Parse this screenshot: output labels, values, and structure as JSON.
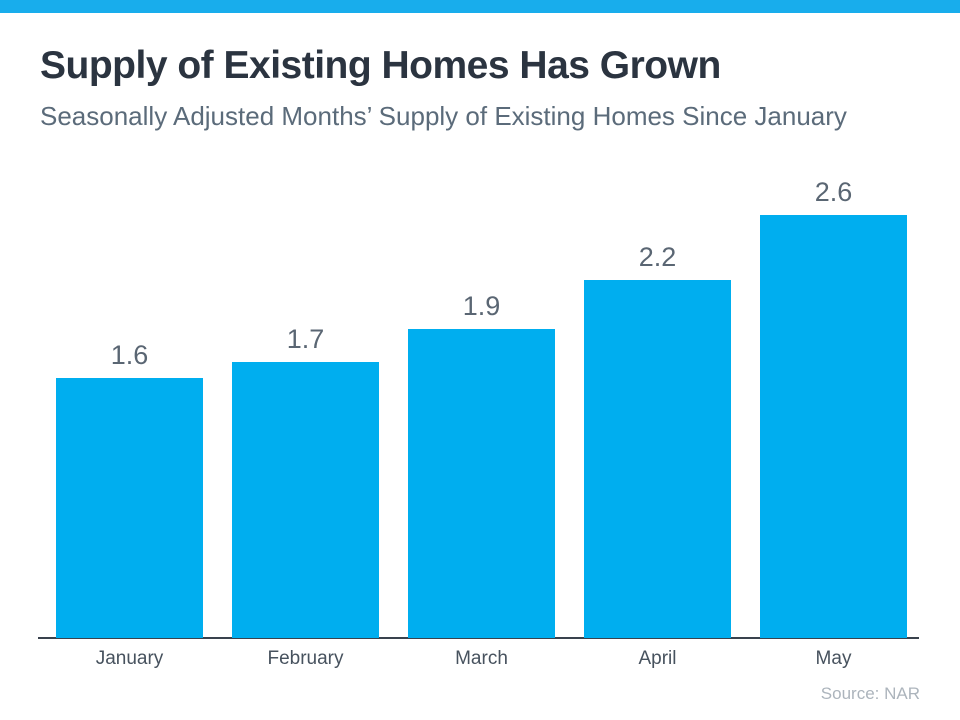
{
  "page": {
    "accent_strip_color": "#18ADEC"
  },
  "chart_data": {
    "type": "bar",
    "title": "Supply of Existing Homes Has Grown",
    "subtitle": "Seasonally Adjusted Months’ Supply of Existing Homes Since January",
    "categories": [
      "January",
      "February",
      "March",
      "April",
      "May"
    ],
    "values": [
      1.6,
      1.7,
      1.9,
      2.2,
      2.6
    ],
    "value_labels": [
      "1.6",
      "1.7",
      "1.9",
      "2.2",
      "2.6"
    ],
    "xlabel": "",
    "ylabel": "",
    "ylim": [
      0,
      2.9
    ],
    "grid": false,
    "legend": false,
    "data_labels_shown": true,
    "bar_color": "#00AEEF",
    "value_label_color": "#5A6673",
    "tick_label_color": "#47525E",
    "axis_line_color": "#39424D"
  },
  "footer": {
    "source_label": "Source: NAR"
  }
}
